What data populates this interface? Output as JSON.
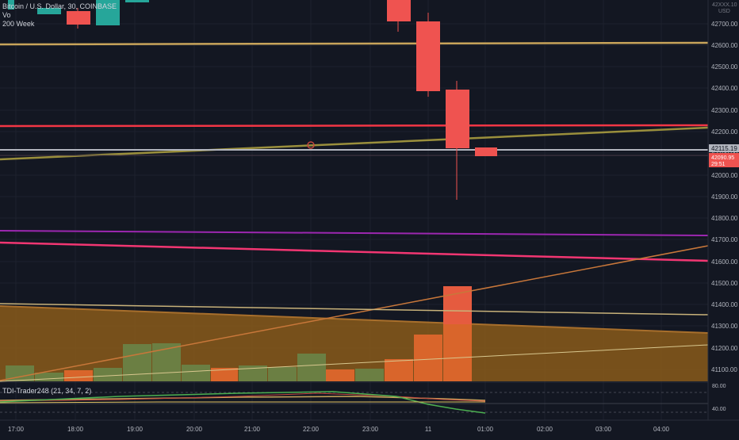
{
  "symbol": {
    "title": "Bitcoin / U.S. Dollar, 30, COINBASE",
    "volume_label": "Vo",
    "ma_label": "200 Week"
  },
  "price_axis": {
    "currency_top": "42XXX.10",
    "currency": "USD",
    "labels": [
      "42700.00",
      "42600.00",
      "42500.00",
      "42400.00",
      "42300.00",
      "42200.00",
      "42100.00",
      "42000.00",
      "41900.00",
      "41800.00",
      "41700.00",
      "41600.00",
      "41500.00",
      "41400.00",
      "41300.00",
      "41200.00",
      "41100.00"
    ],
    "current_price": "42115.19",
    "last_price": "42090.95",
    "countdown": "29:51"
  },
  "time_axis": {
    "labels": [
      "17:00",
      "18:00",
      "19:00",
      "20:00",
      "21:00",
      "22:00",
      "23:00",
      "11",
      "01:00",
      "02:00",
      "03:00",
      "04:00"
    ]
  },
  "indicator": {
    "name": "TDI-Trader248 (21, 34, 7, 2)",
    "levels": [
      "80.00",
      "40.00"
    ]
  },
  "colors": {
    "background": "#131722",
    "bull": "#26a69a",
    "bear": "#ef5350",
    "volume_bull": "#6b7f43",
    "volume_bear": "#d9652b",
    "volume_area": "#8a5a1a",
    "current_price_line": "#b2b5be",
    "red_line": "#f23645",
    "gold_line": "#c8a45a",
    "purple_line": "#9c27b0"
  }
}
